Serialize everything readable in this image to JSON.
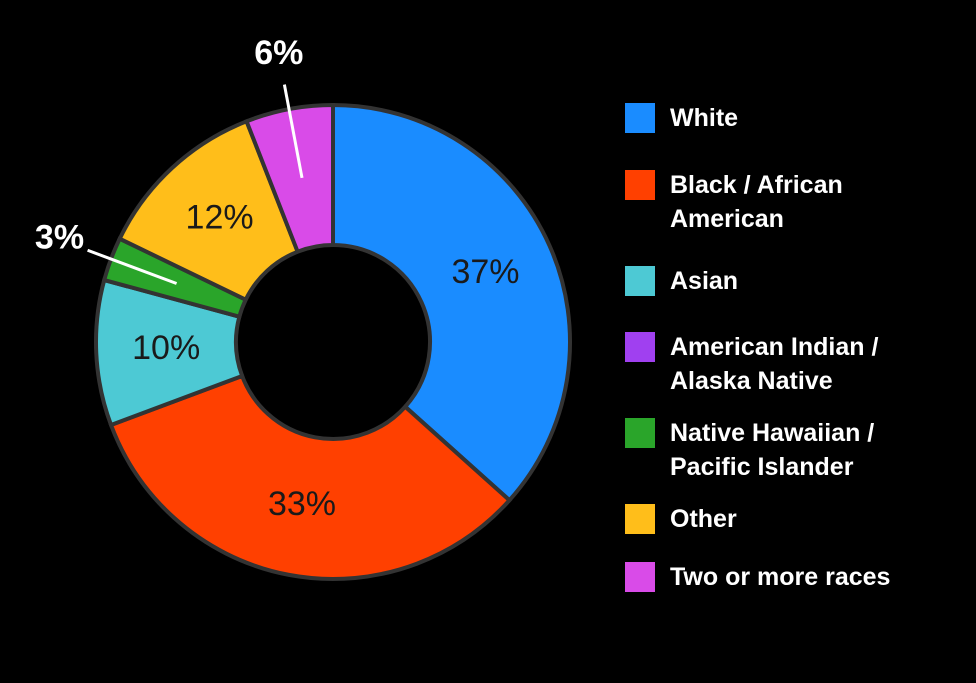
{
  "chart_data": {
    "type": "donut",
    "categories": [
      "White",
      "Black / African American",
      "Asian",
      "American Indian / Alaska Native",
      "Native Hawaiian / Pacific Islander",
      "Other",
      "Two or more races"
    ],
    "values": [
      37,
      33,
      10,
      0,
      3,
      12,
      6
    ],
    "value_labels": [
      "37%",
      "33%",
      "10%",
      null,
      "3%",
      "12%",
      "6%"
    ],
    "colors": [
      "#1a8cff",
      "#ff4000",
      "#4dc9d4",
      "#a040f0",
      "#2aa52a",
      "#ffbe1a",
      "#d94be8"
    ],
    "legend": "right"
  }
}
